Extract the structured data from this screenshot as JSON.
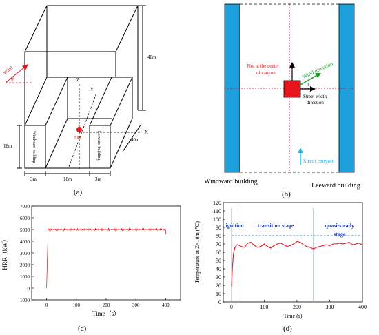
{
  "figure": {
    "panel_labels": [
      "(a)",
      "(b)",
      "(c)",
      "(d)"
    ]
  },
  "panel_a": {
    "labels": {
      "wind": "Wind",
      "theta": "θ",
      "z_axis": "Z",
      "y_axis": "Y",
      "x_axis": "X",
      "fire": "Fire",
      "windward": "Windward building",
      "leeward": "Leeward building",
      "height_40": "40m",
      "height_18": "18m",
      "depth_40": "40m",
      "width_3_left": "3m",
      "width_18": "18m",
      "width_3_right": "3m"
    }
  },
  "panel_b": {
    "labels": {
      "fire_center_1": "Fire at the center",
      "fire_center_2": "of canyon",
      "wind_direction": "Wind direction",
      "theta": "θ",
      "street_width_1": "Street width",
      "street_width_2": "direction",
      "street_canyon": "Street canyon",
      "windward_building": "Windward building",
      "leeward_building": "Leeward building"
    },
    "colors": {
      "building": "#1ea0dc",
      "fire": "#e8141c",
      "wind": "#1f9a2a",
      "canyon_arrow": "#22b5e8",
      "centerline": "#d0021b"
    }
  },
  "chart_c": {
    "type": "line",
    "xlabel": "Time（s）",
    "ylabel": "HRR（kW）",
    "xlim": [
      -50,
      450
    ],
    "ylim": [
      -1000,
      7000
    ],
    "xticks": [
      0,
      100,
      200,
      300,
      400
    ],
    "yticks": [
      -1000,
      0,
      1000,
      2000,
      3000,
      4000,
      5000,
      6000,
      7000
    ],
    "series": [
      {
        "color": "#e8141c",
        "x": [
          0,
          5,
          400,
          400
        ],
        "y": [
          0,
          5000,
          5000,
          4600
        ]
      }
    ]
  },
  "chart_d": {
    "type": "line",
    "xlabel": "Time (s)",
    "ylabel": "Temperature at Z=18m (℃)",
    "xlim": [
      -25,
      400
    ],
    "ylim": [
      0,
      120
    ],
    "xticks": [
      0,
      100,
      200,
      300,
      400
    ],
    "yticks": [
      0,
      10,
      20,
      30,
      40,
      50,
      60,
      70,
      80,
      90,
      100,
      110,
      120
    ],
    "stage_lines": [
      0,
      20,
      250
    ],
    "stages": [
      "ignition",
      "transition stage",
      "quasi-steady",
      "stage"
    ],
    "series": [
      {
        "color": "#e8141c",
        "x": [
          0,
          3,
          6,
          10,
          14,
          18,
          22,
          30,
          40,
          50,
          60,
          70,
          80,
          90,
          100,
          110,
          120,
          130,
          140,
          150,
          160,
          170,
          180,
          190,
          200,
          210,
          220,
          230,
          240,
          250,
          260,
          270,
          280,
          290,
          300,
          310,
          320,
          330,
          340,
          350,
          360,
          370,
          380,
          390,
          400
        ],
        "y": [
          19,
          42,
          58,
          65,
          68,
          69,
          68.5,
          67,
          66,
          71,
          72,
          68,
          66,
          67,
          70,
          67,
          65,
          68,
          70,
          71,
          69,
          67,
          68,
          70,
          73,
          72,
          69,
          67,
          66,
          64,
          66,
          67,
          68,
          69,
          68,
          70,
          70,
          71,
          70,
          71,
          72,
          69,
          70,
          71,
          69
        ]
      }
    ]
  }
}
